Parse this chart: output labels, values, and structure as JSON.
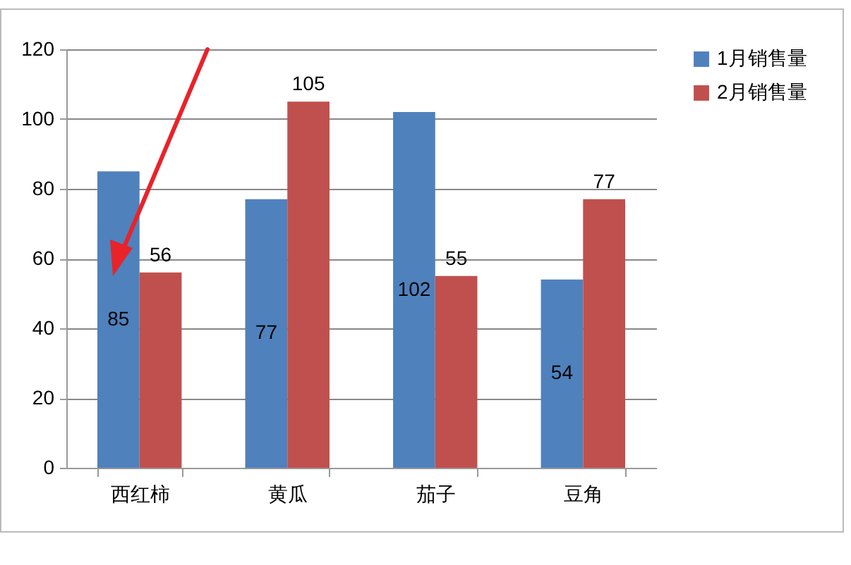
{
  "chart_data": {
    "type": "bar",
    "categories": [
      "西红柿",
      "黄瓜",
      "茄子",
      "豆角"
    ],
    "series": [
      {
        "name": "1月销售量",
        "color": "#4f81bd",
        "values": [
          85,
          77,
          102,
          54
        ]
      },
      {
        "name": "2月销售量",
        "color": "#c0504d",
        "values": [
          56,
          105,
          55,
          77
        ]
      }
    ],
    "ylim": [
      0,
      120
    ],
    "yticks": [
      0,
      20,
      40,
      60,
      80,
      100,
      120
    ],
    "grid": "y",
    "legend": "right",
    "data_labels": true
  }
}
